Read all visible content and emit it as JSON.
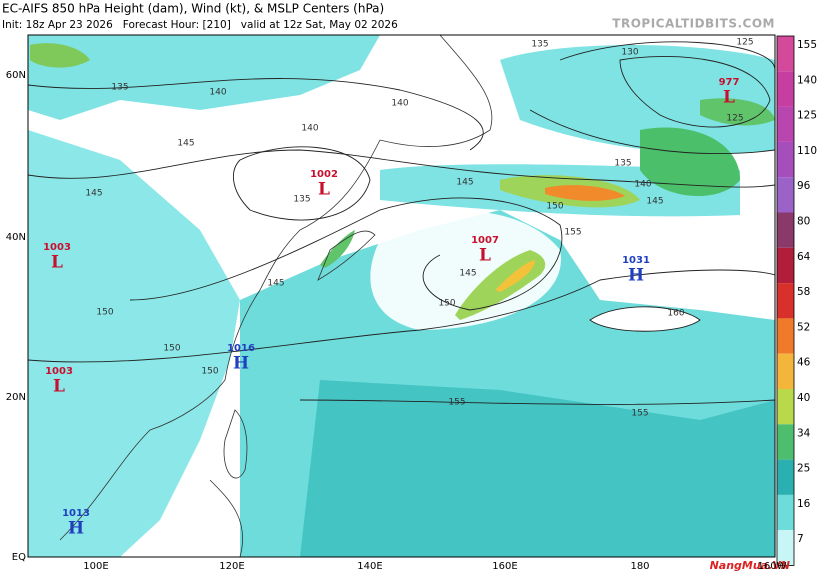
{
  "header": {
    "title": "EC-AIFS 850 hPa Height (dam), Wind (kt), & MSLP Centers (hPa)",
    "subtitle": "Init: 18z Apr 23 2026   Forecast Hour: [210]   valid at 12z Sat, May 02 2026",
    "site": "TROPICALTIDBITS.COM"
  },
  "map": {
    "lat_labels": [
      "60N",
      "40N",
      "20N",
      "EQ"
    ],
    "lon_labels": [
      "100E",
      "120E",
      "140E",
      "160E",
      "180",
      "160W"
    ],
    "pressure_centers": [
      {
        "symbol": "L",
        "value": 977
      },
      {
        "symbol": "L",
        "value": 1002
      },
      {
        "symbol": "L",
        "value": 1003
      },
      {
        "symbol": "L",
        "value": 1007
      },
      {
        "symbol": "H",
        "value": 1031
      },
      {
        "symbol": "H",
        "value": 1016
      },
      {
        "symbol": "L",
        "value": 1003
      },
      {
        "symbol": "H",
        "value": 1013
      }
    ],
    "contour_labels": [
      135,
      130,
      125,
      135,
      140,
      140,
      140,
      145,
      145,
      135,
      145,
      140,
      145,
      150,
      155,
      145,
      150,
      150,
      150,
      150,
      155,
      155,
      160,
      135,
      125,
      145
    ]
  },
  "colorbar": {
    "labels": [
      155,
      140,
      125,
      110,
      96,
      80,
      64,
      58,
      52,
      46,
      40,
      34,
      25,
      16,
      7
    ]
  },
  "watermark": "NangMua.VN"
}
